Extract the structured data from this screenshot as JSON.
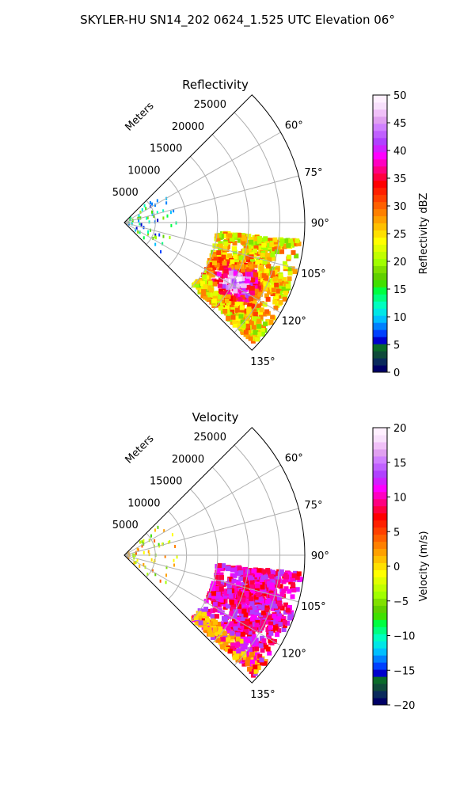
{
  "figure": {
    "suptitle": "SKYLER-HU  SN14_202  0624_1.525 UTC Elevation 06°"
  },
  "colors": {
    "grid": "#b0b0b0",
    "frame": "#000000",
    "reflectivity_cmap": [
      "#000066",
      "#0a2a5c",
      "#0f4a3a",
      "#0a6a2a",
      "#0000cc",
      "#0040ff",
      "#0080ff",
      "#00bfff",
      "#00e6e6",
      "#00ffbf",
      "#00ff80",
      "#00ff40",
      "#40e000",
      "#60d000",
      "#80e000",
      "#a0ff00",
      "#c0ff00",
      "#e0ff00",
      "#ffff00",
      "#ffe000",
      "#ffc000",
      "#ffa000",
      "#ff8000",
      "#ff6000",
      "#ff4000",
      "#ff2000",
      "#ff0000",
      "#ff0040",
      "#ff0080",
      "#ff00c0",
      "#ff00ff",
      "#d020ff",
      "#b040ff",
      "#c060ff",
      "#d080ff",
      "#e0a0f0",
      "#f0c0f8",
      "#f8e0fc",
      "#fff0ff"
    ],
    "velocity_cmap": [
      "#000066",
      "#0a2a5c",
      "#0f4a3a",
      "#0a6a2a",
      "#0000cc",
      "#0040ff",
      "#0080ff",
      "#00bfff",
      "#00e6e6",
      "#00ffbf",
      "#00ff80",
      "#00ff40",
      "#40e000",
      "#60d000",
      "#80e000",
      "#a0ff00",
      "#c0ff00",
      "#e0ff00",
      "#ffff00",
      "#ffe000",
      "#ffc000",
      "#ffa000",
      "#ff8000",
      "#ff6000",
      "#ff4000",
      "#ff2000",
      "#ff0000",
      "#ff0040",
      "#ff0080",
      "#ff00c0",
      "#ff00ff",
      "#d020ff",
      "#b040ff",
      "#c060ff",
      "#d080ff",
      "#e0a0f0",
      "#f0c0f8",
      "#f8e0fc",
      "#fff0ff"
    ]
  },
  "chart_data": [
    {
      "type": "heatmap",
      "projection": "polar",
      "title": "Reflectivity",
      "radial_label": "Meters",
      "r_range": [
        0,
        29000
      ],
      "theta_range_deg": [
        45,
        135
      ],
      "r_ticks": [
        5000,
        10000,
        15000,
        20000,
        25000
      ],
      "r_tick_labels": [
        "5000",
        "10000",
        "15000",
        "20000",
        "25000"
      ],
      "theta_ticks_deg": [
        60,
        75,
        90,
        105,
        120,
        135
      ],
      "theta_tick_labels": [
        "60°",
        "75°",
        "90°",
        "105°",
        "120°",
        "135°"
      ],
      "grid": true,
      "colorbar": {
        "label": "Reflectivity dBZ",
        "range": [
          0,
          50
        ],
        "ticks": [
          0,
          5,
          10,
          15,
          20,
          25,
          30,
          35,
          40,
          45,
          50
        ],
        "tick_labels": [
          "0",
          "5",
          "10",
          "15",
          "20",
          "25",
          "30",
          "35",
          "40",
          "45",
          "50"
        ]
      }
    },
    {
      "type": "heatmap",
      "projection": "polar",
      "title": "Velocity",
      "radial_label": "Meters",
      "r_range": [
        0,
        29000
      ],
      "theta_range_deg": [
        45,
        135
      ],
      "r_ticks": [
        5000,
        10000,
        15000,
        20000,
        25000
      ],
      "r_tick_labels": [
        "5000",
        "10000",
        "15000",
        "20000",
        "25000"
      ],
      "theta_ticks_deg": [
        60,
        75,
        90,
        105,
        120,
        135
      ],
      "theta_tick_labels": [
        "60°",
        "75°",
        "90°",
        "105°",
        "120°",
        "135°"
      ],
      "grid": true,
      "colorbar": {
        "label": "Velocity (m/s)",
        "range": [
          -20,
          20
        ],
        "ticks": [
          -20,
          -15,
          -10,
          -5,
          0,
          5,
          10,
          15,
          20
        ],
        "tick_labels": [
          "−20",
          "−15",
          "−10",
          "−5",
          "0",
          "5",
          "10",
          "15",
          "20"
        ]
      }
    }
  ]
}
